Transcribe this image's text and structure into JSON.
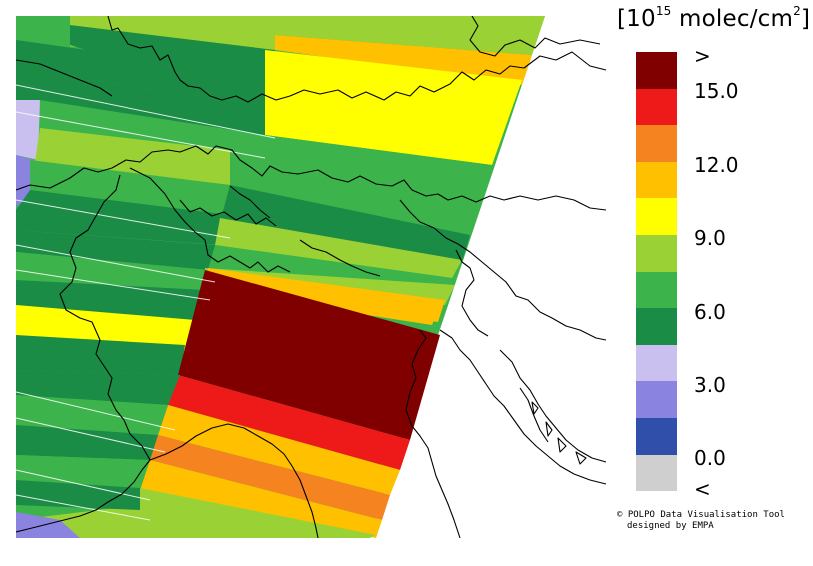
{
  "legend": {
    "title_base": "[10",
    "title_exp": "15",
    "title_unit": " molec/cm",
    "title_unit_exp": "2",
    "title_close": "]",
    "colors": [
      "#800000",
      "#ee1a1a",
      "#f58320",
      "#ffc000",
      "#ffff00",
      "#9ad235",
      "#3cb44b",
      "#1a8c46",
      "#c9c0ef",
      "#8a84e0",
      "#2f4faa",
      "#cfcfcf"
    ],
    "labels": [
      ">",
      "15.0",
      "12.0",
      "9.0",
      "6.0",
      "3.0",
      "0.0",
      "<"
    ]
  },
  "credit": {
    "line1": "© POLPO Data Visualisation Tool",
    "line2": "designed by EMPA"
  },
  "map": {
    "description_colors": {
      "dark_green": "#1a8c46",
      "green": "#3cb44b",
      "light_green": "#9ad235",
      "yellow": "#ffff00",
      "amber": "#ffc000",
      "orange": "#f58320",
      "red": "#ee1a1a",
      "dark_red": "#800000",
      "lavender": "#c9c0ef",
      "periwinkle": "#8a84e0"
    }
  }
}
